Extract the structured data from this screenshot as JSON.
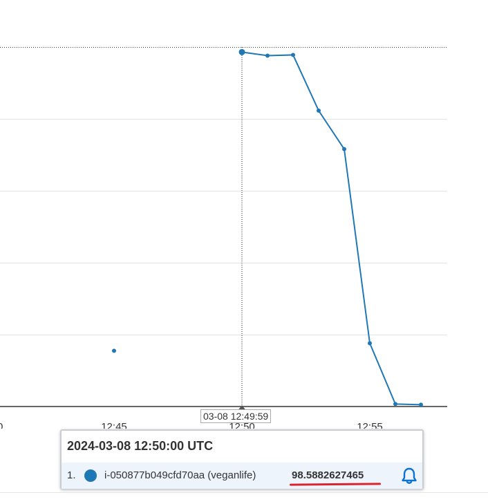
{
  "chart_data": {
    "type": "line",
    "x_tick_labels": [
      "0",
      "12:45",
      "12:50",
      "12:55"
    ],
    "series": [
      {
        "name": "i-050877b049cfd70aa (veganlife)",
        "color": "#1f77b4",
        "points": [
          {
            "t": "12:45",
            "y": 15.5
          },
          {
            "t": "12:50",
            "y": 98.5882627465
          },
          {
            "t": "12:51",
            "y": 97.6
          },
          {
            "t": "12:52",
            "y": 97.8
          },
          {
            "t": "12:53",
            "y": 82.3
          },
          {
            "t": "12:54",
            "y": 71.6
          },
          {
            "t": "12:55",
            "y": 17.6
          },
          {
            "t": "12:56",
            "y": 0.7
          },
          {
            "t": "12:57",
            "y": 0.5
          }
        ]
      }
    ],
    "ylim": [
      0,
      100
    ],
    "grid": true,
    "crosshair_time": "12:50",
    "crosshair_label": "03-08 12:49:59"
  },
  "tooltip": {
    "title": "2024-03-08 12:50:00 UTC",
    "rows": [
      {
        "index": "1.",
        "name": "i-050877b049cfd70aa (veganlife)",
        "value": "98.5882627465",
        "color": "#1f77b4"
      }
    ]
  }
}
